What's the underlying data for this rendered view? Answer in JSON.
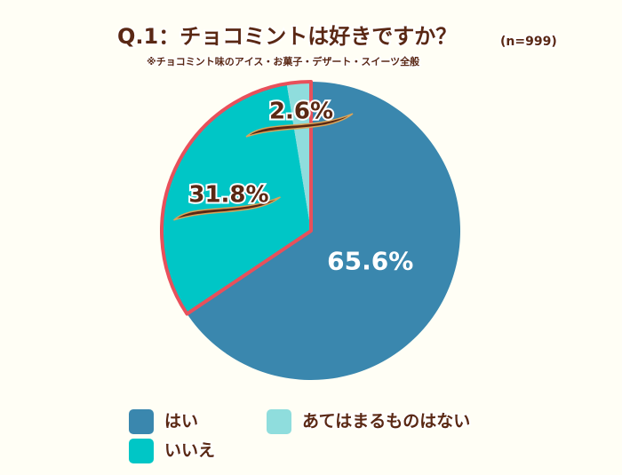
{
  "chart_data": {
    "type": "pie",
    "title": "Q.1：チョコミントは好きですか？",
    "title_note": "(n=999)",
    "subtitle": "※チョコミント味のアイス・お菓子・デザート・スイーツ全般",
    "categories": [
      "はい",
      "いいえ",
      "あてはまるものはない"
    ],
    "values": [
      65.6,
      31.8,
      2.6
    ],
    "value_labels": [
      "65.6%",
      "31.8%",
      "2.6%"
    ],
    "colors": [
      "#3a87ae",
      "#00c6c6",
      "#8fdddd"
    ],
    "highlight_color": "#e8505b"
  }
}
